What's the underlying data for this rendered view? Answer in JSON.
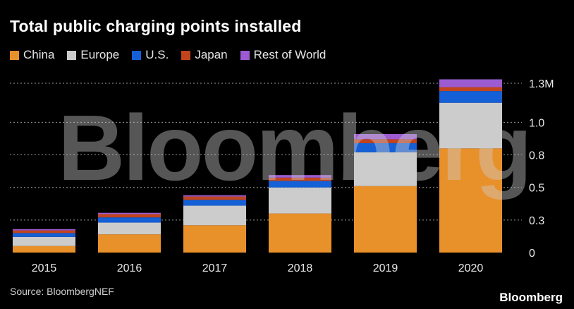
{
  "chart_data": {
    "type": "bar",
    "stacked": true,
    "title": "Total public charging points installed",
    "source": "Source: BloombergNEF",
    "brand": "Bloomberg",
    "watermark": "Bloomberg",
    "categories": [
      "2015",
      "2016",
      "2017",
      "2018",
      "2019",
      "2020"
    ],
    "series": [
      {
        "name": "China",
        "color": "#e8902a",
        "values": [
          0.05,
          0.14,
          0.21,
          0.3,
          0.51,
          0.8
        ]
      },
      {
        "name": "Europe",
        "color": "#cccccc",
        "values": [
          0.07,
          0.09,
          0.15,
          0.2,
          0.26,
          0.35
        ]
      },
      {
        "name": "U.S.",
        "color": "#1560d6",
        "values": [
          0.03,
          0.04,
          0.045,
          0.05,
          0.07,
          0.09
        ]
      },
      {
        "name": "Japan",
        "color": "#c2441f",
        "values": [
          0.02,
          0.025,
          0.025,
          0.025,
          0.03,
          0.03
        ]
      },
      {
        "name": "Rest of World",
        "color": "#9c5bd1",
        "values": [
          0.01,
          0.01,
          0.01,
          0.02,
          0.04,
          0.06
        ]
      }
    ],
    "ytick_values": [
      0,
      0.25,
      0.5,
      0.75,
      1.0,
      1.3
    ],
    "ytick_labels": [
      "0",
      "0.3",
      "0.5",
      "0.8",
      "1.0",
      "1.3M"
    ],
    "ylim": [
      0,
      1.3
    ],
    "grid": true,
    "legend_position": "top-left"
  }
}
